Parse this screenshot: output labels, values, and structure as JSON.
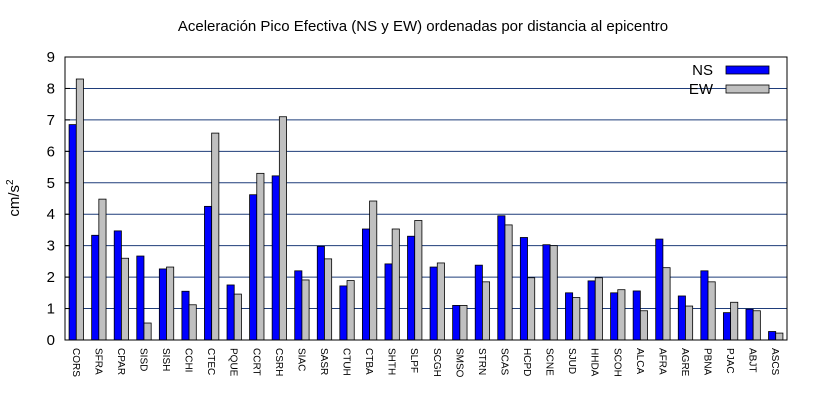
{
  "chart_data": {
    "type": "bar",
    "title": "Aceleración Pico Efectiva (NS y EW) ordenadas por distancia al epicentro",
    "xlabel": "",
    "ylabel": "cm/s",
    "ylabel_superscript": "2",
    "ylim": [
      0,
      9
    ],
    "yticks": [
      "0",
      "1",
      "2",
      "3",
      "4",
      "5",
      "6",
      "7",
      "8",
      "9"
    ],
    "grid": "horizontal",
    "legend_position": "top-right",
    "categories": [
      "CORS",
      "SFRA",
      "CPAR",
      "SISD",
      "SISH",
      "CCHI",
      "CTEC",
      "PQUE",
      "CCRT",
      "CSRH",
      "SIAC",
      "SASR",
      "CTUH",
      "CTBA",
      "SHTH",
      "SLPF",
      "SCGH",
      "SMSO",
      "STRN",
      "SCAS",
      "HCPD",
      "SCNE",
      "SJUD",
      "HHDA",
      "SCOH",
      "ALCA",
      "AFRA",
      "AGRE",
      "PBNA",
      "PJAC",
      "ABJT",
      "ASCS"
    ],
    "series": [
      {
        "name": "NS",
        "color": "#0000ff",
        "values": [
          6.85,
          3.33,
          3.47,
          2.67,
          2.26,
          1.55,
          4.25,
          1.75,
          4.62,
          5.22,
          2.2,
          2.98,
          1.72,
          3.53,
          2.42,
          3.3,
          2.32,
          1.1,
          2.38,
          3.95,
          3.26,
          3.03,
          1.5,
          1.88,
          1.5,
          1.56,
          3.21,
          1.4,
          2.2,
          0.87,
          0.98,
          0.27
        ]
      },
      {
        "name": "EW",
        "color": "#c0c0c0",
        "values": [
          8.3,
          4.48,
          2.6,
          0.54,
          2.32,
          1.12,
          6.58,
          1.46,
          5.3,
          7.1,
          1.91,
          2.58,
          1.89,
          4.42,
          3.53,
          3.8,
          2.45,
          1.1,
          1.85,
          3.66,
          1.98,
          3.0,
          1.35,
          1.98,
          1.6,
          0.93,
          2.3,
          1.08,
          1.85,
          1.2,
          0.93,
          0.22
        ]
      }
    ]
  }
}
